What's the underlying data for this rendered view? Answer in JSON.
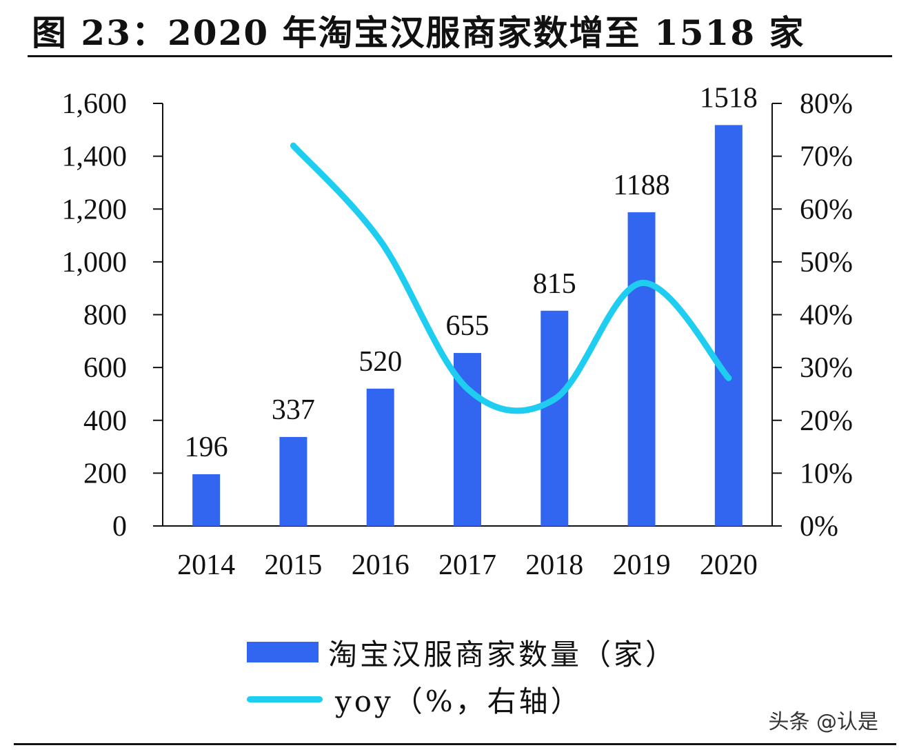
{
  "title": "图 23：2020 年淘宝汉服商家数增至 1518 家",
  "watermark": "头条 @认是",
  "legend": {
    "bar_label": "淘宝汉服商家数量（家）",
    "line_label": "yoy（%，右轴）"
  },
  "colors": {
    "bar": "#3366f0",
    "line": "#1ecdf0"
  },
  "chart_data": {
    "type": "bar",
    "categories": [
      "2014",
      "2015",
      "2016",
      "2017",
      "2018",
      "2019",
      "2020"
    ],
    "series": [
      {
        "name": "淘宝汉服商家数量（家）",
        "type": "bar",
        "axis": "left",
        "values": [
          196,
          337,
          520,
          655,
          815,
          1188,
          1518
        ],
        "labels": [
          "196",
          "337",
          "520",
          "655",
          "815",
          "1188",
          "1518"
        ]
      },
      {
        "name": "yoy（%，右轴）",
        "type": "line",
        "axis": "right",
        "values": [
          null,
          72,
          54,
          26,
          24,
          46,
          28
        ]
      }
    ],
    "y_left": {
      "min": 0,
      "max": 1600,
      "ticks": [
        "0",
        "200",
        "400",
        "600",
        "800",
        "1,000",
        "1,200",
        "1,400",
        "1,600"
      ]
    },
    "y_right": {
      "min": 0,
      "max": 80,
      "ticks": [
        "0%",
        "10%",
        "20%",
        "30%",
        "40%",
        "50%",
        "60%",
        "70%",
        "80%"
      ]
    },
    "grid": false,
    "legend_position": "bottom"
  }
}
